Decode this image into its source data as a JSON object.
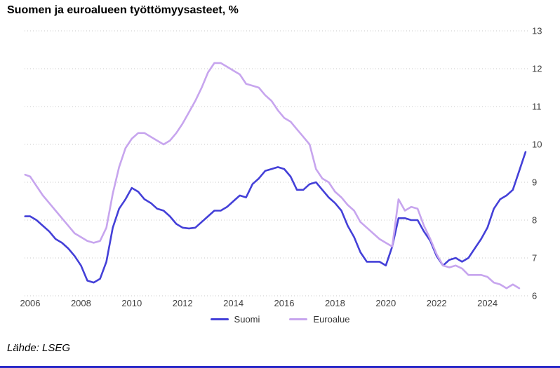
{
  "page": {
    "title": "Suomen ja euroalueen työttömyysasteet, %",
    "source": "Lähde: LSEG"
  },
  "colors": {
    "suomi_line": "#4440d8",
    "euroalue_line": "#c7a5ee",
    "gridline": "#c9c9c9",
    "tick_text": "#3f3f3f",
    "bottom_rule": "#2a2ac8"
  },
  "legend": {
    "items": [
      {
        "label": "Suomi"
      },
      {
        "label": "Euroalue"
      }
    ]
  },
  "chart_data": {
    "type": "line",
    "title": "Suomen ja euroalueen työttömyysasteet, %",
    "xlabel": "",
    "ylabel": "",
    "ylim": [
      6,
      13
    ],
    "xlim": [
      2005.75,
      2025.6
    ],
    "grid": "horizontal-dotted",
    "legend_position": "bottom-center",
    "y_ticks": [
      6,
      7,
      8,
      9,
      10,
      11,
      12,
      13
    ],
    "x_ticks": [
      2006,
      2008,
      2010,
      2012,
      2014,
      2016,
      2018,
      2020,
      2022,
      2024
    ],
    "source": "Lähde: LSEG",
    "series": [
      {
        "name": "Suomi",
        "color": "#4440d8",
        "x": [
          2005.8,
          2006.0,
          2006.25,
          2006.5,
          2006.75,
          2007.0,
          2007.25,
          2007.5,
          2007.75,
          2008.0,
          2008.25,
          2008.5,
          2008.75,
          2009.0,
          2009.25,
          2009.5,
          2009.75,
          2010.0,
          2010.25,
          2010.5,
          2010.75,
          2011.0,
          2011.25,
          2011.5,
          2011.75,
          2012.0,
          2012.25,
          2012.5,
          2012.75,
          2013.0,
          2013.25,
          2013.5,
          2013.75,
          2014.0,
          2014.25,
          2014.5,
          2014.75,
          2015.0,
          2015.25,
          2015.5,
          2015.75,
          2016.0,
          2016.25,
          2016.5,
          2016.75,
          2017.0,
          2017.25,
          2017.5,
          2017.75,
          2018.0,
          2018.25,
          2018.5,
          2018.75,
          2019.0,
          2019.25,
          2019.5,
          2019.75,
          2020.0,
          2020.25,
          2020.5,
          2020.75,
          2021.0,
          2021.25,
          2021.5,
          2021.75,
          2022.0,
          2022.25,
          2022.5,
          2022.75,
          2023.0,
          2023.25,
          2023.5,
          2023.75,
          2024.0,
          2024.25,
          2024.5,
          2024.75,
          2025.0,
          2025.25,
          2025.5
        ],
        "values": [
          8.1,
          8.1,
          8.0,
          7.85,
          7.7,
          7.5,
          7.4,
          7.25,
          7.05,
          6.8,
          6.4,
          6.35,
          6.45,
          6.9,
          7.8,
          8.3,
          8.55,
          8.85,
          8.75,
          8.55,
          8.45,
          8.3,
          8.25,
          8.1,
          7.9,
          7.8,
          7.78,
          7.8,
          7.95,
          8.1,
          8.25,
          8.25,
          8.35,
          8.5,
          8.65,
          8.6,
          8.95,
          9.1,
          9.3,
          9.35,
          9.4,
          9.35,
          9.15,
          8.8,
          8.8,
          8.95,
          9.0,
          8.8,
          8.6,
          8.45,
          8.25,
          7.85,
          7.55,
          7.15,
          6.9,
          6.9,
          6.9,
          6.8,
          7.3,
          8.05,
          8.05,
          8.0,
          8.0,
          7.7,
          7.45,
          7.05,
          6.8,
          6.95,
          7.0,
          6.9,
          7.0,
          7.25,
          7.5,
          7.8,
          8.3,
          8.55,
          8.65,
          8.8,
          9.3,
          9.8
        ]
      },
      {
        "name": "Euroalue",
        "color": "#c7a5ee",
        "x": [
          2005.8,
          2006.0,
          2006.25,
          2006.5,
          2006.75,
          2007.0,
          2007.25,
          2007.5,
          2007.75,
          2008.0,
          2008.25,
          2008.5,
          2008.75,
          2009.0,
          2009.25,
          2009.5,
          2009.75,
          2010.0,
          2010.25,
          2010.5,
          2010.75,
          2011.0,
          2011.25,
          2011.5,
          2011.75,
          2012.0,
          2012.25,
          2012.5,
          2012.75,
          2013.0,
          2013.25,
          2013.5,
          2013.75,
          2014.0,
          2014.25,
          2014.5,
          2014.75,
          2015.0,
          2015.25,
          2015.5,
          2015.75,
          2016.0,
          2016.25,
          2016.5,
          2016.75,
          2017.0,
          2017.25,
          2017.5,
          2017.75,
          2018.0,
          2018.25,
          2018.5,
          2018.75,
          2019.0,
          2019.25,
          2019.5,
          2019.75,
          2020.0,
          2020.25,
          2020.5,
          2020.75,
          2021.0,
          2021.25,
          2021.5,
          2021.75,
          2022.0,
          2022.25,
          2022.5,
          2022.75,
          2023.0,
          2023.25,
          2023.5,
          2023.75,
          2024.0,
          2024.25,
          2024.5,
          2024.75,
          2025.0,
          2025.25
        ],
        "values": [
          9.2,
          9.15,
          8.9,
          8.65,
          8.45,
          8.25,
          8.05,
          7.85,
          7.65,
          7.55,
          7.45,
          7.4,
          7.45,
          7.8,
          8.7,
          9.4,
          9.9,
          10.15,
          10.3,
          10.3,
          10.2,
          10.1,
          10.0,
          10.1,
          10.3,
          10.55,
          10.85,
          11.15,
          11.5,
          11.9,
          12.15,
          12.15,
          12.05,
          11.95,
          11.85,
          11.6,
          11.55,
          11.5,
          11.3,
          11.15,
          10.9,
          10.7,
          10.6,
          10.4,
          10.2,
          10.0,
          9.35,
          9.1,
          9.0,
          8.75,
          8.6,
          8.4,
          8.25,
          7.95,
          7.8,
          7.65,
          7.5,
          7.4,
          7.3,
          8.55,
          8.25,
          8.35,
          8.3,
          7.85,
          7.5,
          7.1,
          6.8,
          6.75,
          6.8,
          6.72,
          6.55,
          6.55,
          6.55,
          6.5,
          6.35,
          6.3,
          6.2,
          6.3,
          6.2
        ]
      }
    ]
  }
}
